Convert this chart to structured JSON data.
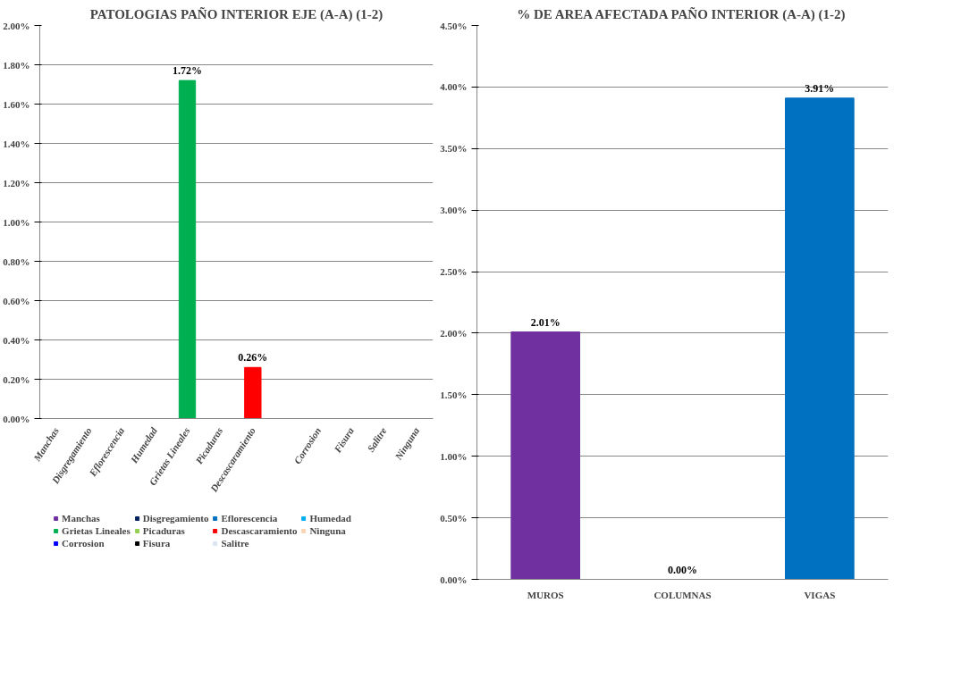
{
  "chart_data": [
    {
      "type": "bar",
      "title": "PATOLOGIAS PAÑO INTERIOR EJE (A-A) (1-2)",
      "categories": [
        "Manchas",
        "Disgregamiento",
        "Eflorescencia",
        "Humedad",
        "Grietas Lineales",
        "Picaduras",
        "Descascaramiento",
        null,
        "Corrosion",
        "Fisura",
        "Salitre",
        "Ninguna"
      ],
      "series": [
        {
          "name": "Manchas",
          "color": "#7030a0",
          "values": [
            0,
            null,
            null,
            null,
            null,
            null,
            null,
            null,
            null,
            null,
            null,
            null
          ]
        },
        {
          "name": "Disgregamiento",
          "color": "#002060",
          "values": [
            null,
            0,
            null,
            null,
            null,
            null,
            null,
            null,
            null,
            null,
            null,
            null
          ]
        },
        {
          "name": "Eflorescencia",
          "color": "#0070c0",
          "values": [
            null,
            null,
            0,
            null,
            null,
            null,
            null,
            null,
            null,
            null,
            null,
            null
          ]
        },
        {
          "name": "Humedad",
          "color": "#00b0f0",
          "values": [
            null,
            null,
            null,
            0,
            null,
            null,
            null,
            null,
            null,
            null,
            null,
            null
          ]
        },
        {
          "name": "Grietas Lineales",
          "color": "#00b050",
          "values": [
            null,
            null,
            null,
            null,
            1.72,
            null,
            null,
            null,
            null,
            null,
            null,
            null
          ],
          "value_labels": [
            null,
            null,
            null,
            null,
            "1.72%",
            null,
            null,
            null,
            null,
            null,
            null,
            null
          ]
        },
        {
          "name": "Picaduras",
          "color": "#92d050",
          "values": [
            null,
            null,
            null,
            null,
            null,
            0,
            null,
            null,
            null,
            null,
            null,
            null
          ]
        },
        {
          "name": "Descascaramiento",
          "color": "#ff0000",
          "values": [
            null,
            null,
            null,
            null,
            null,
            null,
            0.26,
            null,
            null,
            null,
            null,
            null
          ],
          "value_labels": [
            null,
            null,
            null,
            null,
            null,
            null,
            "0.26%",
            null,
            null,
            null,
            null,
            null
          ]
        },
        {
          "name": "Ninguna",
          "color": "#fbd5b5",
          "values": [
            null,
            null,
            null,
            null,
            null,
            null,
            null,
            null,
            null,
            null,
            null,
            0
          ]
        },
        {
          "name": "Corrosion",
          "color": "#0000ff",
          "values": [
            null,
            null,
            null,
            null,
            null,
            null,
            null,
            null,
            0,
            null,
            null,
            null
          ]
        },
        {
          "name": "Fisura",
          "color": "#000000",
          "values": [
            null,
            null,
            null,
            null,
            null,
            null,
            null,
            null,
            null,
            0,
            null,
            null
          ]
        },
        {
          "name": "Salitre",
          "color": "#dbe5f1",
          "values": [
            null,
            null,
            null,
            null,
            null,
            null,
            null,
            null,
            null,
            null,
            0,
            null
          ]
        }
      ],
      "ylim": [
        0,
        2
      ],
      "yticks": [
        {
          "value": 0,
          "label": "0.00%"
        },
        {
          "value": 0.2,
          "label": "0.20%"
        },
        {
          "value": 0.4,
          "label": "0.40%"
        },
        {
          "value": 0.6,
          "label": "0.60%"
        },
        {
          "value": 0.8,
          "label": "0.80%"
        },
        {
          "value": 1,
          "label": "1.00%"
        },
        {
          "value": 1.2,
          "label": "1.20%"
        },
        {
          "value": 1.4,
          "label": "1.40%"
        },
        {
          "value": 1.6,
          "label": "1.60%"
        },
        {
          "value": 1.8,
          "label": "1.80%"
        },
        {
          "value": 2,
          "label": "2.00%"
        }
      ],
      "grid": "y",
      "legend": "bottom"
    },
    {
      "type": "bar",
      "title": "% DE AREA AFECTADA PAÑO INTERIOR (A-A) (1-2)",
      "categories": [
        "MUROS",
        "COLUMNAS",
        "VIGAS"
      ],
      "values": [
        2.01,
        0,
        3.91
      ],
      "colors": [
        "#7030a0",
        "#c0504d",
        "#0070c0"
      ],
      "value_labels": [
        "2.01%",
        "0.00%",
        "3.91%"
      ],
      "ylim": [
        0,
        4.5
      ],
      "yticks": [
        {
          "value": 0,
          "label": "0.00%"
        },
        {
          "value": 0.5,
          "label": "0.50%"
        },
        {
          "value": 1,
          "label": "1.00%"
        },
        {
          "value": 1.5,
          "label": "1.50%"
        },
        {
          "value": 2,
          "label": "2.00%"
        },
        {
          "value": 2.5,
          "label": "2.50%"
        },
        {
          "value": 3,
          "label": "3.00%"
        },
        {
          "value": 3.5,
          "label": "3.50%"
        },
        {
          "value": 4,
          "label": "4.00%"
        },
        {
          "value": 4.5,
          "label": "4.50%"
        }
      ],
      "grid": "y"
    }
  ]
}
